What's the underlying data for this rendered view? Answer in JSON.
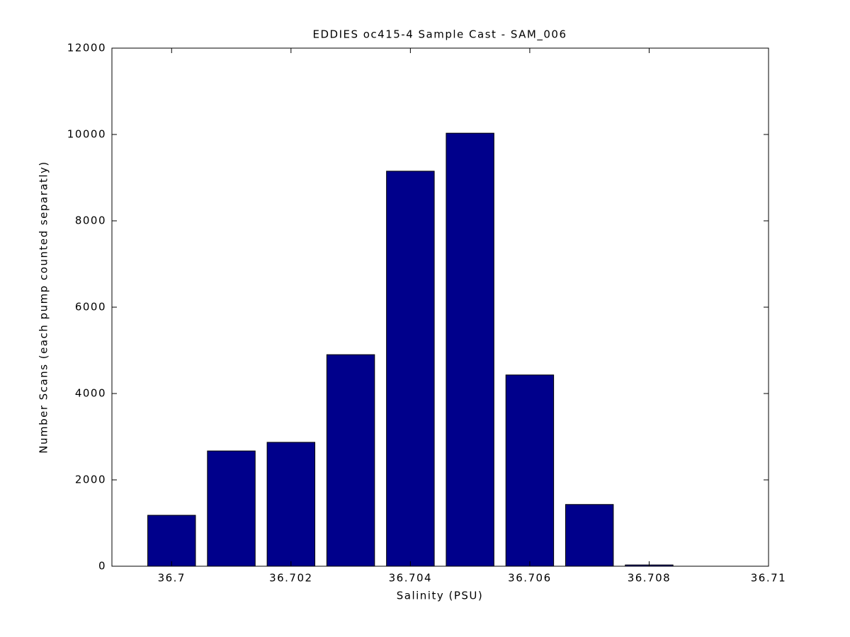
{
  "chart_data": {
    "type": "bar",
    "title": "EDDIES oc415-4 Sample Cast - SAM_006",
    "x_label": "Salinity (PSU)",
    "y_label": "Number Scans (each pump counted separatly)",
    "x": [
      36.7,
      36.701,
      36.702,
      36.703,
      36.704,
      36.705,
      36.706,
      36.707,
      36.708
    ],
    "values": [
      1180,
      2670,
      2870,
      4900,
      9150,
      10030,
      4430,
      1430,
      30
    ],
    "color": "#00008b",
    "xlim": [
      36.699,
      36.71
    ],
    "xticks": [
      36.7,
      36.702,
      36.704,
      36.706,
      36.708,
      36.71
    ],
    "ylim": [
      0,
      12000
    ],
    "yticks": [
      0,
      2000,
      4000,
      6000,
      8000,
      10000,
      12000
    ],
    "grid": false
  }
}
